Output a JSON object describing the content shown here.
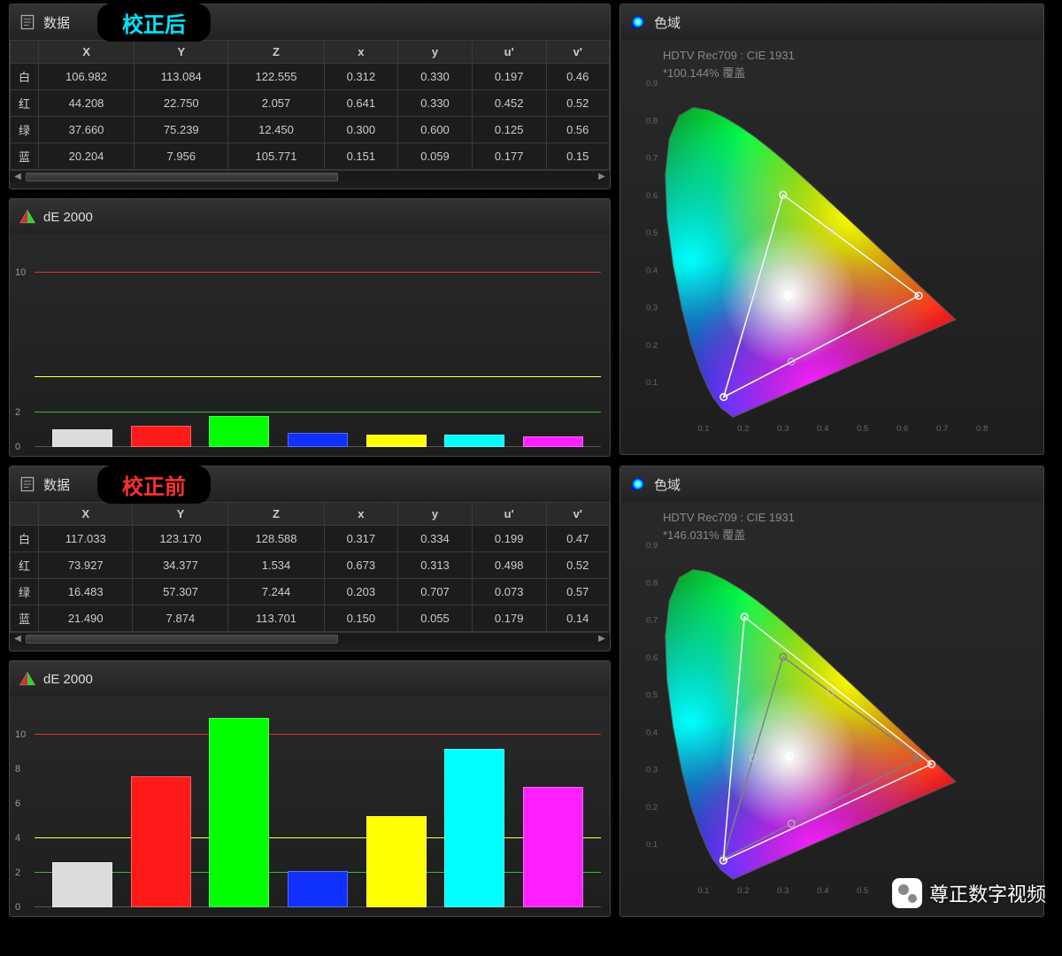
{
  "sections": [
    {
      "badge": "校正后",
      "badge_color": "#00e5ff",
      "data_panel": {
        "title": "数据",
        "columns": [
          "",
          "X",
          "Y",
          "Z",
          "x",
          "y",
          "u'",
          "v'"
        ],
        "rows": [
          {
            "label": "白",
            "values": [
              "106.982",
              "113.084",
              "122.555",
              "0.312",
              "0.330",
              "0.197",
              "0.46"
            ]
          },
          {
            "label": "红",
            "values": [
              "44.208",
              "22.750",
              "2.057",
              "0.641",
              "0.330",
              "0.452",
              "0.52"
            ]
          },
          {
            "label": "绿",
            "values": [
              "37.660",
              "75.239",
              "12.450",
              "0.300",
              "0.600",
              "0.125",
              "0.56"
            ]
          },
          {
            "label": "蓝",
            "values": [
              "20.204",
              "7.956",
              "105.771",
              "0.151",
              "0.059",
              "0.177",
              "0.15"
            ]
          }
        ]
      },
      "de_panel": {
        "title": "dE 2000",
        "y_max": 12,
        "y_ticks": [
          0,
          2,
          10
        ],
        "ref_lines": [
          {
            "y": 10,
            "color": "#e03030"
          },
          {
            "y": 4,
            "color": "#ffff40"
          },
          {
            "y": 2,
            "color": "#30c030"
          }
        ],
        "bars": [
          {
            "color": "#dcdcdc",
            "value": 1.0
          },
          {
            "color": "#ff1a1a",
            "value": 1.2
          },
          {
            "color": "#00ff00",
            "value": 1.8
          },
          {
            "color": "#1030ff",
            "value": 0.8
          },
          {
            "color": "#ffff00",
            "value": 0.7
          },
          {
            "color": "#00ffff",
            "value": 0.7
          },
          {
            "color": "#ff20ff",
            "value": 0.6
          }
        ]
      },
      "gamut_panel": {
        "title": "色域",
        "info1": "HDTV Rec709 : CIE 1931",
        "info2": "*100.144% 覆盖",
        "x_ticks": [
          0.1,
          0.2,
          0.3,
          0.4,
          0.5,
          0.6,
          0.7,
          0.8
        ],
        "y_ticks": [
          0.1,
          0.2,
          0.3,
          0.4,
          0.5,
          0.6,
          0.7,
          0.8,
          0.9
        ],
        "measured_triangle": [
          [
            0.641,
            0.33
          ],
          [
            0.3,
            0.6
          ],
          [
            0.151,
            0.059
          ]
        ],
        "target_triangle": [
          [
            0.64,
            0.33
          ],
          [
            0.3,
            0.6
          ],
          [
            0.15,
            0.06
          ]
        ],
        "white_point": [
          0.312,
          0.33
        ],
        "secondary_points": [
          [
            0.225,
            0.329
          ],
          [
            0.419,
            0.505
          ],
          [
            0.321,
            0.154
          ]
        ],
        "triangle_stroke": "#ffffff",
        "target_stroke": "#808080"
      }
    },
    {
      "badge": "校正前",
      "badge_color": "#ff3030",
      "data_panel": {
        "title": "数据",
        "columns": [
          "",
          "X",
          "Y",
          "Z",
          "x",
          "y",
          "u'",
          "v'"
        ],
        "rows": [
          {
            "label": "白",
            "values": [
              "117.033",
              "123.170",
              "128.588",
              "0.317",
              "0.334",
              "0.199",
              "0.47"
            ]
          },
          {
            "label": "红",
            "values": [
              "73.927",
              "34.377",
              "1.534",
              "0.673",
              "0.313",
              "0.498",
              "0.52"
            ]
          },
          {
            "label": "绿",
            "values": [
              "16.483",
              "57.307",
              "7.244",
              "0.203",
              "0.707",
              "0.073",
              "0.57"
            ]
          },
          {
            "label": "蓝",
            "values": [
              "21.490",
              "7.874",
              "113.701",
              "0.150",
              "0.055",
              "0.179",
              "0.14"
            ]
          }
        ]
      },
      "de_panel": {
        "title": "dE 2000",
        "y_max": 12,
        "y_ticks": [
          0,
          2,
          4,
          6,
          8,
          10
        ],
        "ref_lines": [
          {
            "y": 10,
            "color": "#e03030"
          },
          {
            "y": 4,
            "color": "#ffff40"
          },
          {
            "y": 2,
            "color": "#30c030"
          }
        ],
        "bars": [
          {
            "color": "#dcdcdc",
            "value": 2.6
          },
          {
            "color": "#ff1a1a",
            "value": 7.6
          },
          {
            "color": "#00ff00",
            "value": 11.0
          },
          {
            "color": "#1030ff",
            "value": 2.1
          },
          {
            "color": "#ffff00",
            "value": 5.3
          },
          {
            "color": "#00ffff",
            "value": 9.2
          },
          {
            "color": "#ff20ff",
            "value": 7.0
          }
        ]
      },
      "gamut_panel": {
        "title": "色域",
        "info1": "HDTV Rec709 : CIE 1931",
        "info2": "*146.031% 覆盖",
        "x_ticks": [
          0.1,
          0.2,
          0.3,
          0.4,
          0.5,
          0.6,
          0.7,
          0.8
        ],
        "y_ticks": [
          0.1,
          0.2,
          0.3,
          0.4,
          0.5,
          0.6,
          0.7,
          0.8,
          0.9
        ],
        "measured_triangle": [
          [
            0.673,
            0.313
          ],
          [
            0.203,
            0.707
          ],
          [
            0.15,
            0.055
          ]
        ],
        "target_triangle": [
          [
            0.64,
            0.33
          ],
          [
            0.3,
            0.6
          ],
          [
            0.15,
            0.06
          ]
        ],
        "white_point": [
          0.317,
          0.334
        ],
        "secondary_points": [
          [
            0.225,
            0.329
          ],
          [
            0.419,
            0.505
          ],
          [
            0.321,
            0.154
          ]
        ],
        "triangle_stroke": "#ffffff",
        "target_stroke": "#808080"
      }
    }
  ],
  "watermark": "尊正数字视频",
  "cie_locus": [
    [
      0.1741,
      0.005
    ],
    [
      0.144,
      0.0297
    ],
    [
      0.1241,
      0.0578
    ],
    [
      0.1096,
      0.0868
    ],
    [
      0.0913,
      0.1327
    ],
    [
      0.0687,
      0.2007
    ],
    [
      0.0454,
      0.295
    ],
    [
      0.0235,
      0.4127
    ],
    [
      0.0082,
      0.5384
    ],
    [
      0.0039,
      0.6548
    ],
    [
      0.0139,
      0.7502
    ],
    [
      0.0389,
      0.812
    ],
    [
      0.0743,
      0.8338
    ],
    [
      0.1142,
      0.8262
    ],
    [
      0.1547,
      0.8059
    ],
    [
      0.1929,
      0.7816
    ],
    [
      0.2296,
      0.7543
    ],
    [
      0.2658,
      0.7243
    ],
    [
      0.3016,
      0.6923
    ],
    [
      0.3373,
      0.6589
    ],
    [
      0.3731,
      0.6245
    ],
    [
      0.4087,
      0.5896
    ],
    [
      0.4441,
      0.5547
    ],
    [
      0.4788,
      0.5202
    ],
    [
      0.5125,
      0.4866
    ],
    [
      0.5448,
      0.4544
    ],
    [
      0.5752,
      0.4242
    ],
    [
      0.6029,
      0.3965
    ],
    [
      0.627,
      0.3725
    ],
    [
      0.6482,
      0.3514
    ],
    [
      0.6658,
      0.334
    ],
    [
      0.6801,
      0.3197
    ],
    [
      0.6915,
      0.3083
    ],
    [
      0.7006,
      0.2993
    ],
    [
      0.714,
      0.2859
    ],
    [
      0.726,
      0.274
    ],
    [
      0.734,
      0.266
    ],
    [
      0.1741,
      0.005
    ]
  ]
}
